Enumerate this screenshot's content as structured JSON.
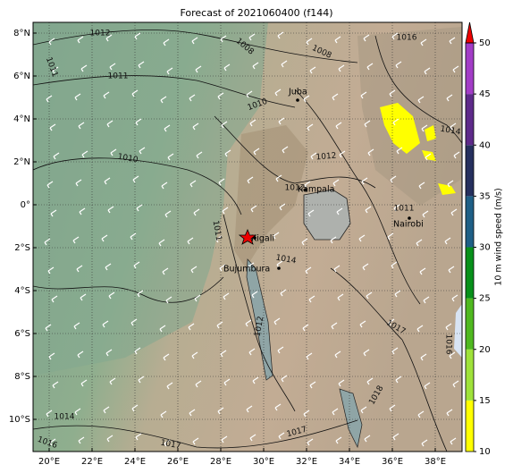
{
  "title": "Forecast of 2021060400 (f144)",
  "map": {
    "lon_range": [
      19.25,
      39.25
    ],
    "lat_range": [
      -11.5,
      8.5
    ],
    "lon_ticks": [
      {
        "value": 20,
        "label": "20°E"
      },
      {
        "value": 22,
        "label": "22°E"
      },
      {
        "value": 24,
        "label": "24°E"
      },
      {
        "value": 26,
        "label": "26°E"
      },
      {
        "value": 28,
        "label": "28°E"
      },
      {
        "value": 30,
        "label": "30°E"
      },
      {
        "value": 32,
        "label": "32°E"
      },
      {
        "value": 34,
        "label": "34°E"
      },
      {
        "value": 36,
        "label": "36°E"
      },
      {
        "value": 38,
        "label": "38°E"
      }
    ],
    "lat_ticks": [
      {
        "value": 8,
        "label": "8°N"
      },
      {
        "value": 6,
        "label": "6°N"
      },
      {
        "value": 4,
        "label": "4°N"
      },
      {
        "value": 2,
        "label": "2°N"
      },
      {
        "value": 0,
        "label": "0°"
      },
      {
        "value": -2,
        "label": "2°S"
      },
      {
        "value": -4,
        "label": "4°S"
      },
      {
        "value": -6,
        "label": "6°S"
      },
      {
        "value": -8,
        "label": "8°S"
      },
      {
        "value": -10,
        "label": "10°S"
      }
    ],
    "places": [
      "Juba",
      "Kampala",
      "Kigali",
      "Bujumbura",
      "Nairobi"
    ],
    "isobar_labels": [
      "1012",
      "1011",
      "1011",
      "1008",
      "1008",
      "1010",
      "1010",
      "1012",
      "1012",
      "1014",
      "1016",
      "1014",
      "1016",
      "1017",
      "1017",
      "1017",
      "1018",
      "1016",
      "1014",
      "1011",
      "1012",
      "1011"
    ]
  },
  "colorbar": {
    "label": "10 m wind speed (m/s)",
    "ticks": [
      10,
      15,
      20,
      25,
      30,
      35,
      40,
      45,
      50
    ],
    "colors": [
      "#ffff00",
      "#9fe23a",
      "#4fb820",
      "#08901a",
      "#1f5f86",
      "#26305e",
      "#5e2a8a",
      "#a23cc6"
    ],
    "extend_color": "#ee0000"
  }
}
